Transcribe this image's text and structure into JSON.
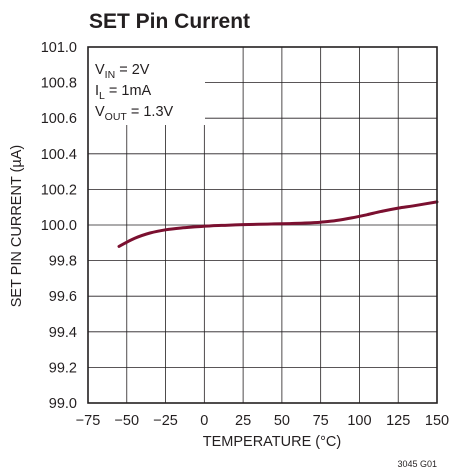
{
  "chart_data": {
    "type": "line",
    "title": "SET Pin Current",
    "xlabel": "TEMPERATURE (°C)",
    "ylabel": "SET PIN CURRENT (µA)",
    "xlim": [
      -75,
      150
    ],
    "ylim": [
      99.0,
      101.0
    ],
    "x_ticks": [
      -75,
      -50,
      -25,
      0,
      25,
      50,
      75,
      100,
      125,
      150
    ],
    "y_ticks": [
      "99.0",
      "99.2",
      "99.4",
      "99.6",
      "99.8",
      "100.0",
      "100.2",
      "100.4",
      "100.6",
      "100.8",
      "101.0"
    ],
    "grid": true,
    "series": [
      {
        "color": "#7b1030",
        "x": [
          -55,
          -45,
          -35,
          -25,
          -15,
          -5,
          5,
          15,
          25,
          35,
          45,
          55,
          65,
          75,
          85,
          95,
          105,
          115,
          125,
          135,
          150
        ],
        "y": [
          99.88,
          99.925,
          99.955,
          99.973,
          99.983,
          99.99,
          99.996,
          99.999,
          100.002,
          100.004,
          100.006,
          100.008,
          100.011,
          100.016,
          100.025,
          100.04,
          100.058,
          100.078,
          100.095,
          100.108,
          100.13
        ]
      }
    ],
    "conditions": {
      "vin": {
        "main": "V",
        "sub": "IN",
        "rest": " = 2V"
      },
      "il": {
        "main": "I",
        "sub": "L",
        "rest": " = 1mA"
      },
      "vout": {
        "main": "V",
        "sub": "OUT",
        "rest": " = 1.3V"
      }
    },
    "figure_id": "3045 G01"
  }
}
